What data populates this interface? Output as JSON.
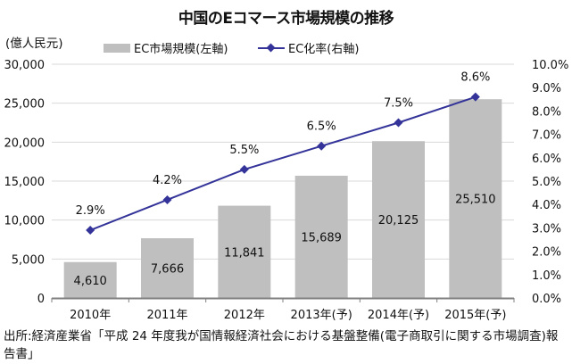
{
  "chart_data": {
    "type": "bar",
    "title": "中国のEコマース市場規模の推移",
    "categories": [
      "2010年",
      "2011年",
      "2012年",
      "2013年(予)",
      "2014年(予)",
      "2015年(予)"
    ],
    "series": [
      {
        "name": "EC市場規模(左軸)",
        "type": "bar",
        "axis": "left",
        "color": "#bfbfbf",
        "values": [
          4610,
          7666,
          11841,
          15689,
          20125,
          25510
        ],
        "labels": [
          "4,610",
          "7,666",
          "11,841",
          "15,689",
          "20,125",
          "25,510"
        ]
      },
      {
        "name": "EC化率(右軸)",
        "type": "line",
        "axis": "right",
        "color": "#333399",
        "marker": "diamond",
        "values": [
          2.9,
          4.2,
          5.5,
          6.5,
          7.5,
          8.6
        ],
        "labels": [
          "2.9%",
          "4.2%",
          "5.5%",
          "6.5%",
          "7.5%",
          "8.6%"
        ]
      }
    ],
    "left_axis": {
      "label": "(億人民元)",
      "ylim": [
        0,
        30000
      ],
      "ticks": [
        0,
        5000,
        10000,
        15000,
        20000,
        25000,
        30000
      ],
      "tick_labels": [
        "0",
        "5,000",
        "10,000",
        "15,000",
        "20,000",
        "25,000",
        "30,000"
      ]
    },
    "right_axis": {
      "ylim": [
        0,
        10
      ],
      "ticks": [
        0,
        1,
        2,
        3,
        4,
        5,
        6,
        7,
        8,
        9,
        10
      ],
      "tick_labels": [
        "0.0%",
        "1.0%",
        "2.0%",
        "3.0%",
        "4.0%",
        "5.0%",
        "6.0%",
        "7.0%",
        "8.0%",
        "9.0%",
        "10.0%"
      ]
    },
    "grid": true,
    "legend": "top-center",
    "source": "出所:経済産業省「平成 24 年度我が国情報経済社会における基盤整備(電子商取引に関する市場調査)報告書」"
  }
}
